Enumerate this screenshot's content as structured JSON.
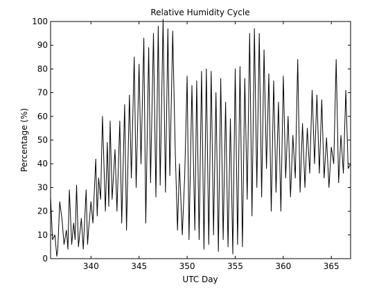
{
  "chart_data": {
    "type": "line",
    "title": "Relative Humidity Cycle",
    "xlabel": "UTC Day",
    "ylabel": "Percentage (%)",
    "xlim": [
      335.8,
      367
    ],
    "ylim": [
      0,
      100
    ],
    "xticks": [
      340,
      345,
      350,
      355,
      360,
      365
    ],
    "yticks": [
      0,
      10,
      20,
      30,
      40,
      50,
      60,
      70,
      80,
      90,
      100
    ],
    "grid": false,
    "line_color": "#000000",
    "series": [
      {
        "x": [
          335.8,
          336.0,
          336.25,
          336.45,
          336.55,
          336.75,
          337.0,
          337.2,
          337.45,
          337.6,
          337.75,
          338.0,
          338.2,
          338.35,
          338.5,
          338.7,
          339.0,
          339.2,
          339.5,
          339.65,
          339.75,
          340.0,
          340.2,
          340.5,
          340.65,
          340.8,
          341.0,
          341.2,
          341.5,
          341.7,
          341.85,
          342.0,
          342.2,
          342.5,
          342.7,
          343.0,
          343.2,
          343.5,
          343.7,
          344.0,
          344.2,
          344.5,
          344.7,
          345.0,
          345.2,
          345.5,
          345.7,
          346.0,
          346.2,
          346.5,
          346.75,
          347.0,
          347.2,
          347.5,
          347.75,
          348.0,
          348.2,
          348.5,
          348.75,
          349.0,
          349.2,
          349.5,
          349.75,
          350.0,
          350.2,
          350.5,
          350.8,
          351.0,
          351.25,
          351.5,
          351.75,
          352.0,
          352.25,
          352.5,
          352.75,
          353.0,
          353.25,
          353.5,
          353.75,
          354.0,
          354.25,
          354.5,
          354.75,
          355.0,
          355.25,
          355.5,
          355.75,
          356.0,
          356.25,
          356.5,
          356.75,
          357.0,
          357.25,
          357.5,
          357.75,
          358.0,
          358.25,
          358.5,
          358.75,
          359.0,
          359.25,
          359.5,
          359.75,
          360.0,
          360.25,
          360.5,
          360.75,
          361.0,
          361.25,
          361.5,
          361.75,
          362.0,
          362.25,
          362.5,
          362.75,
          363.0,
          363.25,
          363.5,
          363.75,
          364.0,
          364.25,
          364.5,
          364.75,
          365.0,
          365.25,
          365.5,
          365.75,
          366.0,
          366.25,
          366.5,
          366.75,
          367.0
        ],
        "values": [
          26,
          8,
          10,
          1,
          4,
          24,
          16,
          6,
          12,
          4,
          29,
          6,
          15,
          8,
          31,
          5,
          17,
          4,
          29,
          6,
          12,
          24,
          15,
          42,
          18,
          34,
          25,
          60,
          20,
          49,
          22,
          58,
          25,
          46,
          20,
          58,
          15,
          65,
          12,
          69,
          34,
          85,
          30,
          82,
          40,
          93,
          15,
          89,
          32,
          95,
          26,
          98,
          31,
          101,
          28,
          97,
          35,
          96,
          48,
          12,
          40,
          10,
          35,
          77,
          8,
          73,
          12,
          75,
          8,
          79,
          4,
          80,
          6,
          79,
          10,
          70,
          3,
          76,
          8,
          66,
          5,
          59,
          2,
          80,
          6,
          81,
          5,
          76,
          25,
          95,
          18,
          97,
          30,
          95,
          26,
          88,
          38,
          78,
          20,
          75,
          28,
          66,
          20,
          77,
          34,
          60,
          26,
          52,
          34,
          84,
          28,
          57,
          30,
          55,
          36,
          71,
          40,
          69,
          36,
          67,
          34,
          51,
          30,
          47,
          40,
          84,
          32,
          52,
          36,
          71,
          38,
          40
        ]
      }
    ]
  }
}
